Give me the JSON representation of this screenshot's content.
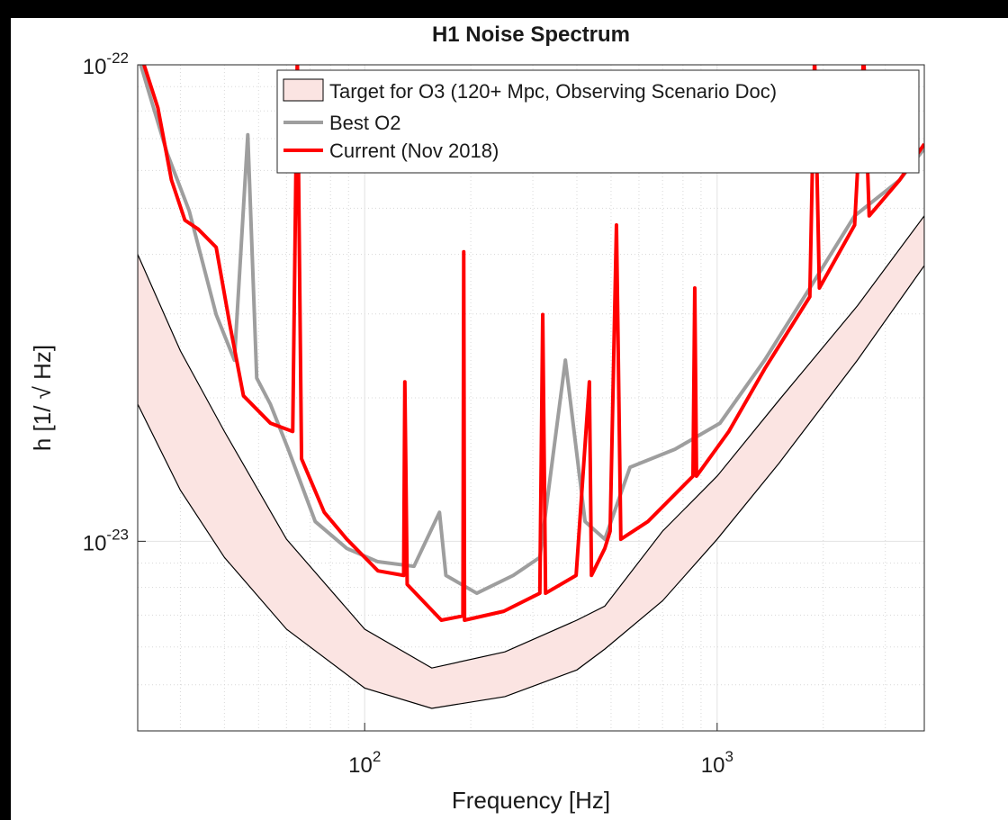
{
  "chart_data": {
    "type": "line",
    "title": "H1 Noise Spectrum",
    "x_label": "Frequency [Hz]",
    "y_label": "h [1/ √ Hz]",
    "xscale": "log",
    "yscale": "log",
    "grid": true,
    "legend": "upper right",
    "xlim": [
      22.7,
      3870
    ],
    "ylim": [
      4e-24,
      1e-22
    ],
    "xticks": [
      {
        "value": 100,
        "label": "10",
        "exponent": "2"
      },
      {
        "value": 1000,
        "label": "10",
        "exponent": "3"
      }
    ],
    "yticks": [
      {
        "value": 1e-23,
        "label": "10",
        "exponent": "-23"
      },
      {
        "value": 1e-22,
        "label": "10",
        "exponent": "-22"
      }
    ],
    "xminor_ticks": [
      30,
      40,
      50,
      60,
      70,
      80,
      90,
      200,
      300,
      400,
      500,
      600,
      700,
      800,
      900,
      2000,
      3000
    ],
    "yminor_ticks": [
      5e-24,
      6e-24,
      7e-24,
      8e-24,
      9e-24,
      2e-23,
      3e-23,
      4e-23,
      5e-23,
      6e-23,
      7e-23,
      8e-23,
      9e-23
    ],
    "band": {
      "name": "Target for O3 (120+ Mpc, Observing Scenario Doc)",
      "color": "#fbe4e2",
      "x": [
        22.7,
        30,
        40,
        60,
        100,
        155,
        250,
        400,
        480,
        700,
        1000,
        1500,
        2500,
        3870
      ],
      "upper": [
        4e-23,
        2.51e-23,
        1.7e-23,
        1.01e-23,
        6.54e-24,
        5.42e-24,
        5.86e-24,
        6.83e-24,
        7.31e-24,
        1.05e-23,
        1.37e-23,
        1.98e-23,
        3.12e-23,
        4.82e-23
      ],
      "lower": [
        1.94e-23,
        1.28e-23,
        9.25e-24,
        6.54e-24,
        4.92e-24,
        4.46e-24,
        4.72e-24,
        5.37e-24,
        5.94e-24,
        7.5e-24,
        1.01e-23,
        1.46e-23,
        2.4e-23,
        3.79e-23
      ]
    },
    "series": [
      {
        "name": "Best O2",
        "color": "#9e9e9e",
        "x": [
          22.7,
          27.5,
          31.8,
          37.9,
          42.7,
          46.6,
          49.4,
          54.0,
          60.7,
          72.4,
          89.0,
          109,
          138,
          163,
          170,
          208,
          264,
          314,
          371,
          422,
          480,
          566,
          759,
          1019,
          1364,
          1832,
          2455,
          3294,
          3870
        ],
        "values": [
          1.05e-22,
          6.53e-23,
          4.93e-23,
          2.99e-23,
          2.4e-23,
          7.13e-23,
          2.2e-23,
          1.94e-23,
          1.56e-23,
          1.1e-23,
          9.66e-24,
          9.06e-24,
          8.86e-24,
          1.15e-23,
          8.48e-24,
          7.78e-24,
          8.48e-24,
          9.25e-24,
          2.4e-23,
          1.1e-23,
          1.01e-23,
          1.43e-23,
          1.56e-23,
          1.77e-23,
          2.4e-23,
          3.4e-23,
          4.82e-23,
          5.73e-23,
          6.67e-23
        ]
      },
      {
        "name": "Current (Nov 2018)",
        "color": "#ff0000",
        "x": [
          22.7,
          25.9,
          28.3,
          30.9,
          33.7,
          37.9,
          41.4,
          45.3,
          54.0,
          62.5,
          64.4,
          66.2,
          76.8,
          89.0,
          109,
          129,
          130,
          132,
          165,
          190,
          191,
          192,
          248,
          314,
          320,
          326,
          398,
          434,
          440,
          480,
          497,
          518,
          533,
          636,
          854,
          864,
          874,
          1079,
          1364,
          1832,
          1890,
          1950,
          2455,
          2605,
          2700,
          3294,
          3870
        ],
        "values": [
          1.1e-22,
          8.12e-23,
          5.73e-23,
          4.72e-23,
          4.52e-23,
          4.14e-23,
          2.86e-23,
          2.02e-23,
          1.77e-23,
          1.7e-23,
          1.05e-22,
          1.49e-23,
          1.15e-23,
          1.01e-23,
          8.67e-24,
          8.48e-24,
          2.16e-23,
          8.12e-24,
          6.83e-24,
          6.97e-24,
          4.05e-23,
          6.83e-24,
          7.13e-24,
          7.78e-24,
          2.99e-23,
          7.78e-24,
          8.48e-24,
          2.16e-23,
          8.48e-24,
          9.66e-24,
          1.05e-23,
          4.61e-23,
          1.01e-23,
          1.1e-23,
          1.37e-23,
          3.4e-23,
          1.37e-23,
          1.7e-23,
          2.3e-23,
          3.26e-23,
          1.05e-22,
          3.4e-23,
          4.61e-23,
          1.05e-22,
          4.82e-23,
          5.73e-23,
          6.82e-23
        ]
      }
    ]
  }
}
